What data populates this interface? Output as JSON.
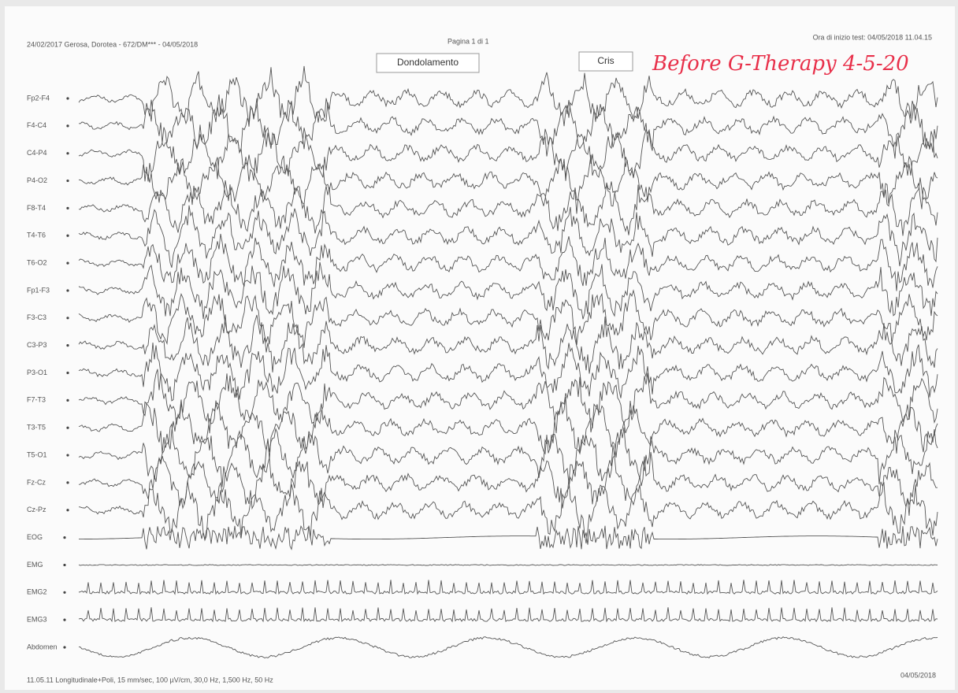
{
  "header": {
    "patient": "24/02/2017 Gerosa, Dorotea - 672/DM*** - 04/05/2018",
    "page": "Pagina 1 di 1",
    "start_time": "Ora di inizio test: 04/05/2018 11.04.15"
  },
  "annotations": [
    "Dondolamento",
    "Cris"
  ],
  "handwritten_note": "Before G-Therapy 4-5-20",
  "channels": [
    "Fp2-F4",
    "F4-C4",
    "C4-P4",
    "P4-O2",
    "F8-T4",
    "T4-T6",
    "T6-O2",
    "Fp1-F3",
    "F3-C3",
    "C3-P3",
    "P3-O1",
    "F7-T3",
    "T3-T5",
    "T5-O1",
    "Fz-Cz",
    "Cz-Pz",
    "EOG",
    "EMG",
    "EMG2",
    "EMG3",
    "Abdomen"
  ],
  "footer": {
    "settings": "11.05.11 Longitudinale+Poli, 15 mm/sec, 100 µV/cm, 30,0 Hz, 1,500 Hz, 50 Hz",
    "date": "04/05/2018"
  }
}
